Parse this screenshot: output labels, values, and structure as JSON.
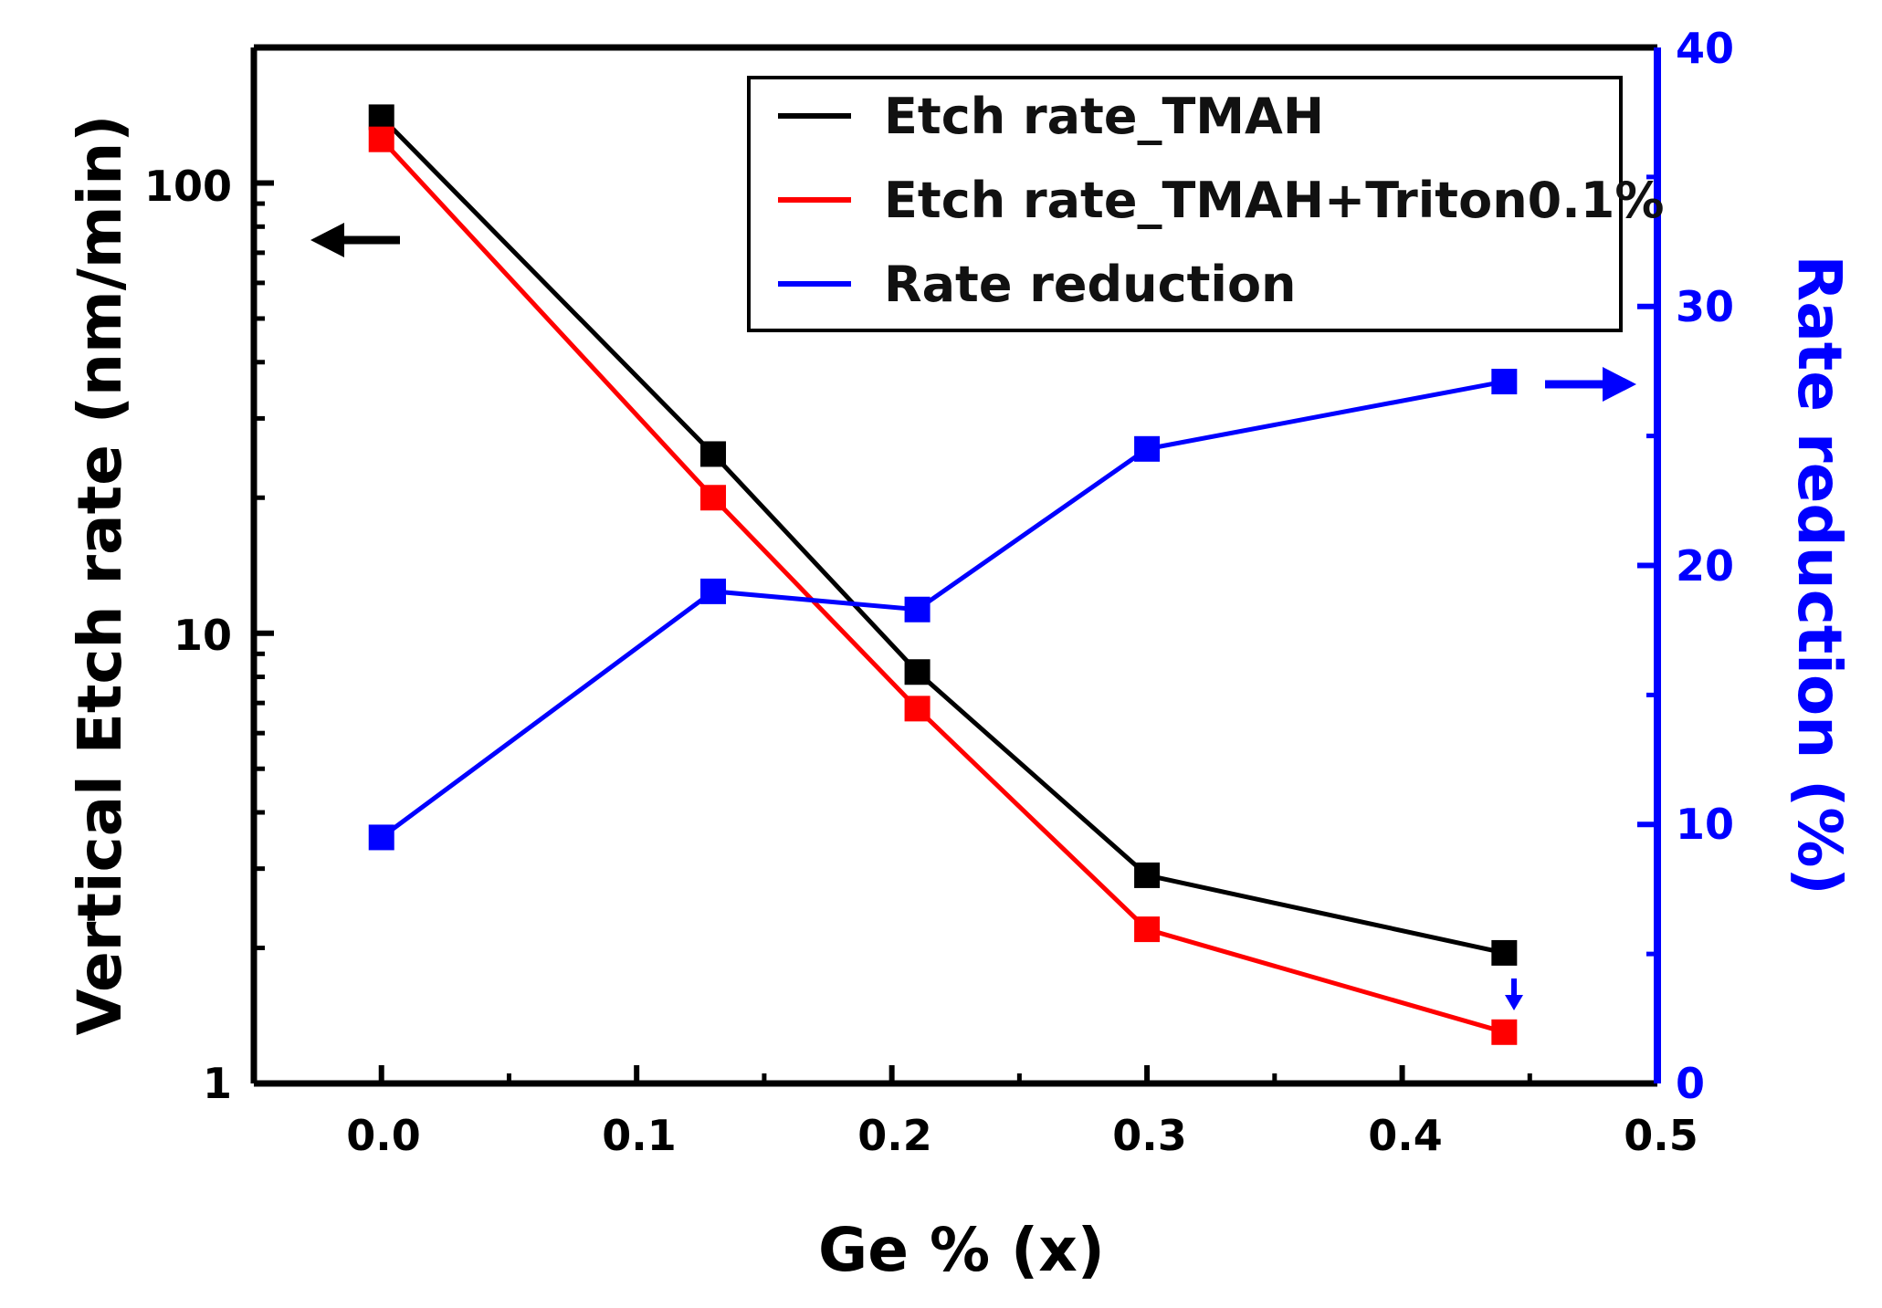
{
  "chart_data": {
    "type": "line",
    "xlabel": "Ge % (x)",
    "ylabel_left": "Vertical Etch rate (nm/min)",
    "ylabel_right": "Rate reduction (%)",
    "xlim": [
      -0.05,
      0.5
    ],
    "xticks": [
      "0.0",
      "0.1",
      "0.2",
      "0.3",
      "0.4",
      "0.5"
    ],
    "ylim_left": [
      1,
      200
    ],
    "yscale_left": "log",
    "yticks_left": [
      "1",
      "10",
      "100"
    ],
    "ylim_right": [
      0,
      40
    ],
    "yticks_right": [
      "0",
      "10",
      "20",
      "30",
      "40"
    ],
    "x": [
      0.0,
      0.13,
      0.21,
      0.3,
      0.44
    ],
    "series": [
      {
        "name": "Etch rate_TMAH",
        "axis": "left",
        "color": "#000000",
        "values": [
          140,
          25,
          8.2,
          2.9,
          1.95
        ]
      },
      {
        "name": "Etch rate_TMAH+Triton0.1%",
        "axis": "left",
        "color": "#ff0000",
        "values": [
          125,
          20,
          6.8,
          2.2,
          1.3
        ]
      },
      {
        "name": "Rate reduction",
        "axis": "right",
        "color": "#0000ff",
        "values": [
          9.5,
          19,
          18.3,
          24.5,
          27.1
        ]
      }
    ],
    "legend_position": "top-right"
  }
}
